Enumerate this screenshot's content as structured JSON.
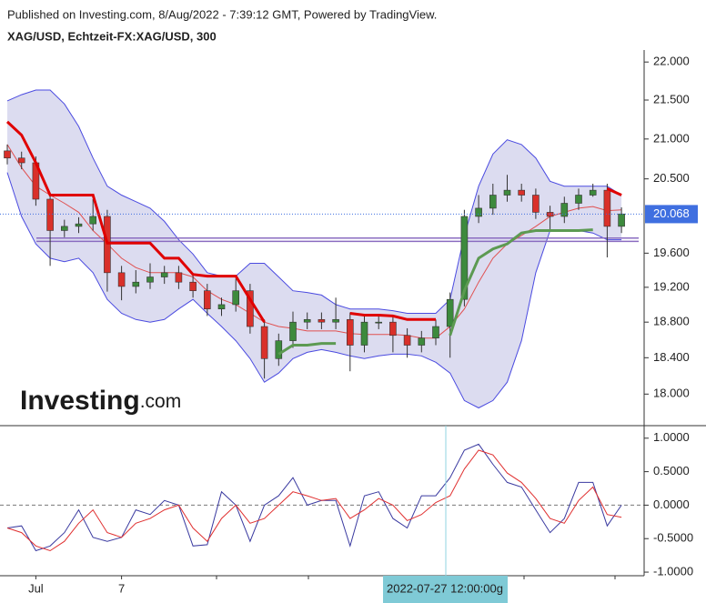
{
  "chart_data": {
    "type": "candlestick",
    "published": "Published on Investing.com, 8/Aug/2022 - 7:39:12 GMT, Powered by TradingView.",
    "title": "XAG/USD, Echtzeit-FX:XAG/USD, 300",
    "watermark": [
      "Investing",
      ".com"
    ],
    "crosshair_label": "2022-07-27 12:00:00g",
    "categories": [
      null,
      null,
      "Jul",
      null,
      null,
      null,
      null,
      null,
      "7",
      null,
      null,
      null,
      null,
      null,
      null,
      null,
      null,
      null,
      null,
      null,
      null,
      null,
      null,
      null,
      null,
      null,
      null,
      null,
      null,
      null,
      null,
      null,
      null,
      null,
      null,
      null,
      null,
      null,
      null,
      null,
      null,
      null,
      null,
      null
    ],
    "log_scale": true,
    "ylim": [
      17.66,
      22.16
    ],
    "yticks": [
      {
        "value": 22,
        "label": "22.000"
      },
      {
        "value": 21.5,
        "label": "21.500"
      },
      {
        "value": 21,
        "label": "21.000"
      },
      {
        "value": 20.5,
        "label": "20.500"
      },
      {
        "value": 19.6,
        "label": "19.600"
      },
      {
        "value": 19.2,
        "label": "19.200"
      },
      {
        "value": 18.8,
        "label": "18.800"
      },
      {
        "value": 18.4,
        "label": "18.400"
      },
      {
        "value": 18,
        "label": "18.000"
      }
    ],
    "up_color": "#3d8a3d",
    "down_color": "#d9302a",
    "open": [
      20.85,
      20.76,
      20.7,
      20.25,
      19.87,
      19.92,
      19.95,
      20.04,
      19.37,
      19.21,
      19.26,
      19.32,
      19.37,
      19.26,
      19.16,
      18.95,
      19.0,
      19.16,
      18.75,
      18.39,
      18.59,
      18.8,
      18.83,
      18.8,
      18.83,
      18.54,
      18.8,
      18.8,
      18.65,
      18.54,
      18.62,
      18.75,
      19.06,
      20.04,
      20.14,
      20.3,
      20.36,
      20.3,
      20.09,
      20.04,
      20.2,
      20.3,
      20.36,
      19.92
    ],
    "high": [
      20.93,
      20.84,
      20.78,
      20.33,
      20.0,
      20.03,
      20.25,
      20.12,
      19.45,
      19.4,
      19.48,
      19.45,
      19.45,
      19.34,
      19.24,
      19.08,
      19.3,
      19.24,
      18.83,
      18.67,
      18.92,
      18.91,
      18.91,
      19.08,
      18.91,
      18.88,
      18.88,
      18.88,
      18.73,
      18.7,
      18.83,
      19.14,
      20.12,
      20.3,
      20.44,
      20.55,
      20.44,
      20.38,
      20.17,
      20.28,
      20.38,
      20.44,
      20.44,
      20.15
    ],
    "low": [
      20.68,
      20.62,
      20.17,
      19.45,
      19.79,
      19.84,
      19.87,
      19.15,
      19.05,
      19.13,
      19.18,
      19.24,
      19.18,
      19.08,
      18.87,
      18.87,
      18.92,
      18.67,
      18.17,
      18.31,
      18.51,
      18.72,
      18.72,
      18.72,
      18.25,
      18.46,
      18.72,
      18.46,
      18.4,
      18.46,
      18.54,
      18.4,
      18.98,
      19.96,
      20.06,
      20.22,
      20.22,
      20.01,
      19.87,
      19.96,
      20.12,
      20.28,
      19.55,
      19.84
    ],
    "close": [
      20.76,
      20.7,
      20.25,
      19.87,
      19.92,
      19.95,
      20.04,
      19.37,
      19.21,
      19.26,
      19.32,
      19.37,
      19.26,
      19.16,
      18.95,
      19.0,
      19.16,
      18.75,
      18.39,
      18.59,
      18.8,
      18.83,
      18.8,
      18.83,
      18.54,
      18.8,
      18.8,
      18.65,
      18.54,
      18.62,
      18.75,
      19.06,
      20.04,
      20.14,
      20.3,
      20.36,
      20.3,
      20.09,
      20.04,
      20.2,
      20.3,
      20.36,
      19.92,
      20.07
    ],
    "bollinger": {
      "line_color": "#4a4ae0",
      "fill_color": "#dcdcf0",
      "basis_color": "#e05050",
      "upper": [
        21.49,
        21.57,
        21.63,
        21.63,
        21.45,
        21.16,
        20.76,
        20.41,
        20.3,
        20.22,
        20.14,
        19.98,
        19.76,
        19.59,
        19.37,
        19.33,
        19.33,
        19.48,
        19.48,
        19.32,
        19.16,
        19.14,
        19.11,
        19.0,
        18.95,
        18.95,
        18.95,
        18.93,
        18.9,
        18.9,
        18.9,
        19.06,
        19.81,
        20.41,
        20.81,
        20.99,
        20.93,
        20.76,
        20.47,
        20.41,
        20.41,
        20.41,
        20.41,
        20.3
      ],
      "lower": [
        20.58,
        20.04,
        19.71,
        19.54,
        19.5,
        19.54,
        19.37,
        19.06,
        18.9,
        18.83,
        18.8,
        18.83,
        18.95,
        19.06,
        18.9,
        18.75,
        18.59,
        18.39,
        18.13,
        18.23,
        18.39,
        18.46,
        18.49,
        18.46,
        18.42,
        18.39,
        18.42,
        18.44,
        18.44,
        18.42,
        18.35,
        18.23,
        17.93,
        17.85,
        17.93,
        18.13,
        18.59,
        19.37,
        19.87,
        19.87,
        19.87,
        19.84,
        19.76,
        19.76
      ],
      "basis": [
        20.93,
        20.64,
        20.41,
        20.3,
        20.2,
        20.09,
        19.87,
        19.71,
        19.54,
        19.43,
        19.37,
        19.37,
        19.37,
        19.32,
        19.16,
        19.06,
        19.0,
        18.9,
        18.8,
        18.75,
        18.73,
        18.7,
        18.7,
        18.7,
        18.67,
        18.66,
        18.66,
        18.66,
        18.65,
        18.62,
        18.62,
        18.75,
        18.95,
        19.26,
        19.54,
        19.71,
        19.81,
        19.92,
        20.04,
        20.09,
        20.14,
        20.16,
        20.11,
        20.12
      ]
    },
    "supertrend": {
      "down_color": "#e00000",
      "up_color": "#5c9a52",
      "down": [
        21.22,
        21.05,
        20.7,
        20.3,
        20.3,
        20.3,
        20.3,
        19.72,
        19.72,
        19.72,
        19.72,
        19.54,
        19.54,
        19.35,
        19.33,
        19.33,
        19.33,
        19.06,
        18.8,
        null,
        null,
        null,
        null,
        null,
        18.9,
        18.88,
        18.88,
        18.87,
        18.83,
        18.83,
        18.83,
        null,
        null,
        null,
        null,
        null,
        null,
        null,
        null,
        null,
        null,
        null,
        20.38,
        20.3
      ],
      "up": [
        null,
        null,
        null,
        null,
        null,
        null,
        null,
        null,
        null,
        null,
        null,
        null,
        null,
        null,
        null,
        null,
        null,
        null,
        null,
        18.44,
        18.54,
        18.54,
        18.56,
        18.56,
        null,
        null,
        null,
        null,
        null,
        null,
        null,
        18.65,
        19.16,
        19.54,
        19.65,
        19.71,
        19.84,
        19.87,
        19.87,
        19.87,
        19.87,
        19.88,
        null,
        null
      ]
    },
    "levels": [
      19.78,
      19.74
    ],
    "levels_color": "#8a6cc0",
    "last_price": {
      "value": 20.068,
      "label": "20.068"
    },
    "last_price_color": "#3f6fe0",
    "oscillator": {
      "ylim": [
        -1.04,
        1.16
      ],
      "yticks": [
        {
          "value": 1,
          "label": "1.0000"
        },
        {
          "value": 0.5,
          "label": "0.5000"
        },
        {
          "value": 0,
          "label": "0.0000"
        },
        {
          "value": -0.5,
          "label": "-0.5000"
        },
        {
          "value": -1,
          "label": "-1.0000"
        }
      ],
      "series": [
        {
          "color": "#3a3aa0",
          "values": [
            -0.34,
            -0.31,
            -0.68,
            -0.61,
            -0.41,
            -0.07,
            -0.48,
            -0.54,
            -0.48,
            -0.07,
            -0.14,
            0.07,
            0,
            -0.61,
            -0.59,
            0.2,
            0,
            -0.54,
            0,
            0.14,
            0.41,
            0,
            0.07,
            0.07,
            -0.61,
            0.14,
            0.2,
            -0.2,
            -0.34,
            0.14,
            0.14,
            0.41,
            0.82,
            0.91,
            0.61,
            0.34,
            0.27,
            -0.07,
            -0.41,
            -0.2,
            0.34,
            0.34,
            -0.31,
            0
          ]
        },
        {
          "color": "#e03030",
          "values": [
            -0.34,
            -0.41,
            -0.61,
            -0.68,
            -0.54,
            -0.27,
            -0.07,
            -0.41,
            -0.48,
            -0.27,
            -0.2,
            -0.07,
            0,
            -0.34,
            -0.54,
            -0.2,
            0,
            -0.27,
            -0.2,
            0,
            0.2,
            0.14,
            0.07,
            0.1,
            -0.2,
            -0.07,
            0.1,
            0,
            -0.23,
            -0.14,
            0.04,
            0.14,
            0.54,
            0.82,
            0.75,
            0.48,
            0.34,
            0.1,
            -0.2,
            -0.27,
            0.07,
            0.27,
            -0.14,
            -0.18
          ]
        }
      ]
    }
  }
}
